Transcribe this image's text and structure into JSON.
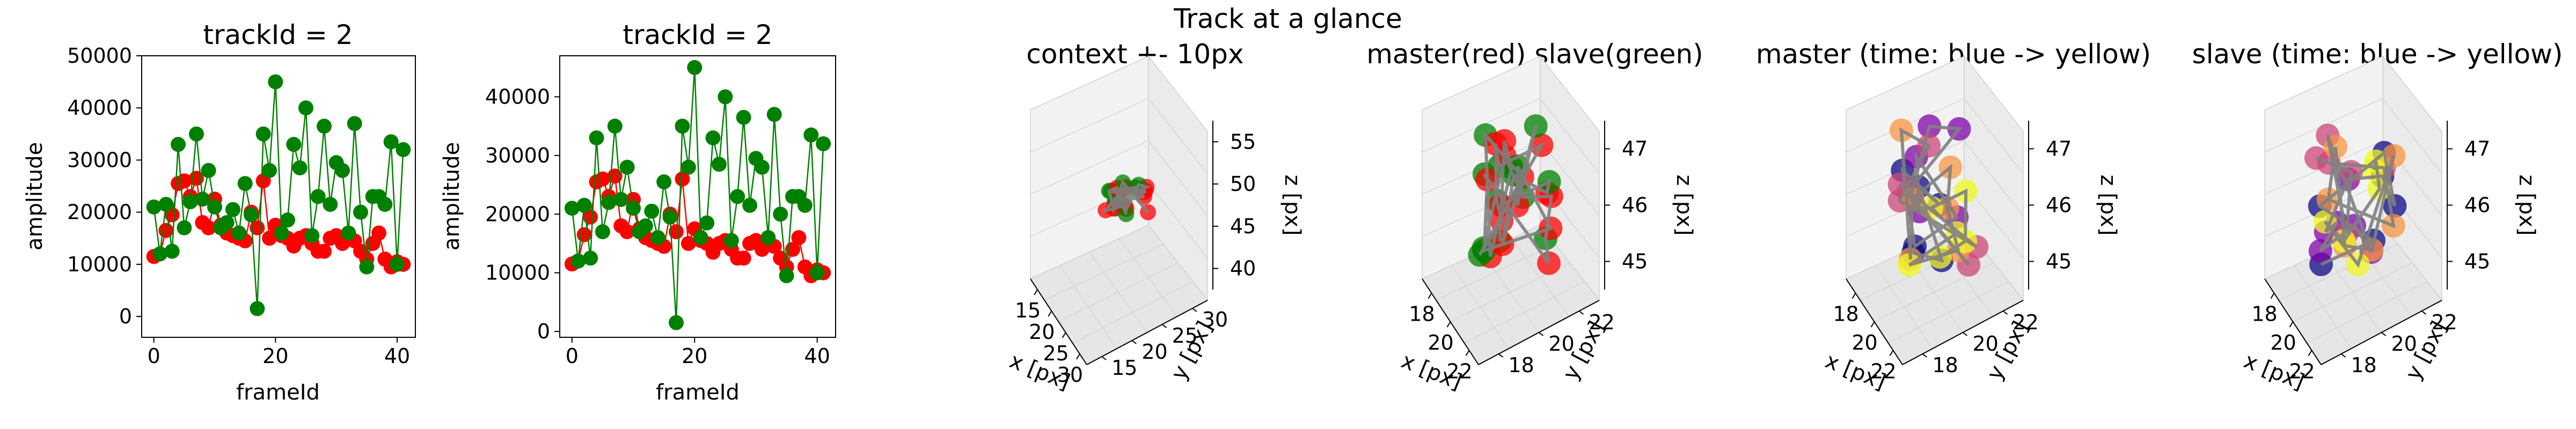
{
  "figure": {
    "suptitle": "Track at a glance"
  },
  "chart_data": [
    {
      "type": "line",
      "title": "trackId = 2",
      "xlabel": "frameId",
      "ylabel": "amplitude",
      "xlim": [
        -2,
        43
      ],
      "ylim": [
        -4000,
        50000
      ],
      "xticks": [
        0,
        20,
        40
      ],
      "yticks": [
        0,
        10000,
        20000,
        30000,
        40000,
        50000
      ],
      "grid": false,
      "series": [
        {
          "color": "#ff0000",
          "x": [
            0,
            1,
            2,
            3,
            4,
            5,
            6,
            7,
            8,
            9,
            10,
            11,
            12,
            13,
            14,
            15,
            16,
            17,
            18,
            19,
            20,
            21,
            22,
            23,
            24,
            25,
            26,
            27,
            28,
            29,
            30,
            31,
            32,
            33,
            34,
            35,
            36,
            37,
            38,
            39,
            40,
            41
          ],
          "values": [
            11500,
            12000,
            16500,
            19500,
            25500,
            26000,
            23000,
            26500,
            18000,
            17000,
            22500,
            17500,
            16000,
            15500,
            15000,
            14500,
            20000,
            17000,
            26000,
            15000,
            17500,
            15500,
            15000,
            13500,
            15000,
            15500,
            14000,
            12500,
            12500,
            15000,
            15500,
            14000,
            15000,
            14500,
            12500,
            11000,
            14000,
            16000,
            11000,
            9500,
            10500,
            10000
          ]
        },
        {
          "color": "#008000",
          "x": [
            0,
            1,
            2,
            3,
            4,
            5,
            6,
            7,
            8,
            9,
            10,
            11,
            12,
            13,
            14,
            15,
            16,
            17,
            18,
            19,
            20,
            21,
            22,
            23,
            24,
            25,
            26,
            27,
            28,
            29,
            30,
            31,
            32,
            33,
            34,
            35,
            36,
            37,
            38,
            39,
            40,
            41
          ],
          "values": [
            21000,
            12000,
            21500,
            12500,
            33000,
            17000,
            22000,
            35000,
            22500,
            28000,
            21000,
            17000,
            18000,
            20500,
            16000,
            25500,
            19500,
            1500,
            35000,
            28000,
            45000,
            16000,
            18500,
            33000,
            28500,
            40000,
            15500,
            23000,
            36500,
            21500,
            29500,
            28000,
            16000,
            37000,
            20000,
            9500,
            23000,
            23000,
            21500,
            33500,
            10000,
            32000
          ]
        }
      ]
    },
    {
      "type": "line",
      "title": "trackId = 2",
      "xlabel": "frameId",
      "ylabel": "amplitude",
      "xlim": [
        -2,
        43
      ],
      "ylim": [
        -1000,
        47000
      ],
      "xticks": [
        0,
        20,
        40
      ],
      "yticks": [
        0,
        10000,
        20000,
        30000,
        40000
      ],
      "grid": false,
      "series": [
        {
          "color": "#ff0000",
          "x": [
            0,
            1,
            2,
            3,
            4,
            5,
            6,
            7,
            8,
            9,
            10,
            11,
            12,
            13,
            14,
            15,
            16,
            17,
            18,
            19,
            20,
            21,
            22,
            23,
            24,
            25,
            26,
            27,
            28,
            29,
            30,
            31,
            32,
            33,
            34,
            35,
            36,
            37,
            38,
            39,
            40,
            41
          ],
          "values": [
            11500,
            12000,
            16500,
            19500,
            25500,
            26000,
            23000,
            26500,
            18000,
            17000,
            22500,
            17500,
            16000,
            15500,
            15000,
            14500,
            20000,
            17000,
            26000,
            15000,
            17500,
            15500,
            15000,
            13500,
            15000,
            15500,
            14000,
            12500,
            12500,
            15000,
            15500,
            14000,
            15000,
            14500,
            12500,
            11000,
            14000,
            16000,
            11000,
            9500,
            10500,
            10000
          ]
        },
        {
          "color": "#008000",
          "x": [
            0,
            1,
            2,
            3,
            4,
            5,
            6,
            7,
            8,
            9,
            10,
            11,
            12,
            13,
            14,
            15,
            16,
            17,
            18,
            19,
            20,
            21,
            22,
            23,
            24,
            25,
            26,
            27,
            28,
            29,
            30,
            31,
            32,
            33,
            34,
            35,
            36,
            37,
            38,
            39,
            40,
            41
          ],
          "values": [
            21000,
            12000,
            21500,
            12500,
            33000,
            17000,
            22000,
            35000,
            22500,
            28000,
            21000,
            17000,
            18000,
            20500,
            16000,
            25500,
            19500,
            1500,
            35000,
            28000,
            45000,
            16000,
            18500,
            33000,
            28500,
            40000,
            15500,
            23000,
            36500,
            21500,
            29500,
            28000,
            16000,
            37000,
            20000,
            9500,
            23000,
            23000,
            21500,
            33500,
            10000,
            32000
          ]
        }
      ]
    },
    {
      "type": "scatter",
      "title": "context +- 10px",
      "xlabel": "x [px]",
      "ylabel": "y [px]",
      "zlabel": "z [px]",
      "xticks": [
        "15",
        "20",
        "25",
        "30"
      ],
      "yticks": [
        "15",
        "20",
        "25",
        "30"
      ],
      "zticks": [
        "40",
        "45",
        "50",
        "55"
      ],
      "point_colors": [
        "#ff0000",
        "#008000"
      ],
      "path_color": "#808080"
    },
    {
      "type": "scatter",
      "title": "master(red) slave(green)",
      "xlabel": "x [px]",
      "ylabel": "y [px]",
      "zlabel": "z [px]",
      "xticks": [
        "18",
        "20",
        "22"
      ],
      "yticks": [
        "18",
        "20",
        "22"
      ],
      "zticks": [
        "45",
        "46",
        "47"
      ],
      "point_colors": [
        "#ff0000",
        "#008000"
      ],
      "path_color": "#808080"
    },
    {
      "type": "scatter",
      "title": "master (time: blue -> yellow)",
      "xlabel": "x [px]",
      "ylabel": "y [px]",
      "zlabel": "z [px]",
      "xticks": [
        "18",
        "20",
        "22"
      ],
      "yticks": [
        "18",
        "20",
        "22"
      ],
      "zticks": [
        "45",
        "46",
        "47"
      ],
      "colormap": [
        "#0d0887",
        "#7e03a8",
        "#cc4778",
        "#f89540",
        "#f0f921"
      ],
      "path_color": "#808080"
    },
    {
      "type": "scatter",
      "title": "slave (time: blue -> yellow)",
      "xlabel": "x [px]",
      "ylabel": "y [px]",
      "zlabel": "z [px]",
      "xticks": [
        "18",
        "20",
        "22"
      ],
      "yticks": [
        "18",
        "20",
        "22"
      ],
      "zticks": [
        "45",
        "46",
        "47"
      ],
      "colormap": [
        "#0d0887",
        "#7e03a8",
        "#cc4778",
        "#f89540",
        "#f0f921"
      ],
      "path_color": "#808080"
    }
  ]
}
